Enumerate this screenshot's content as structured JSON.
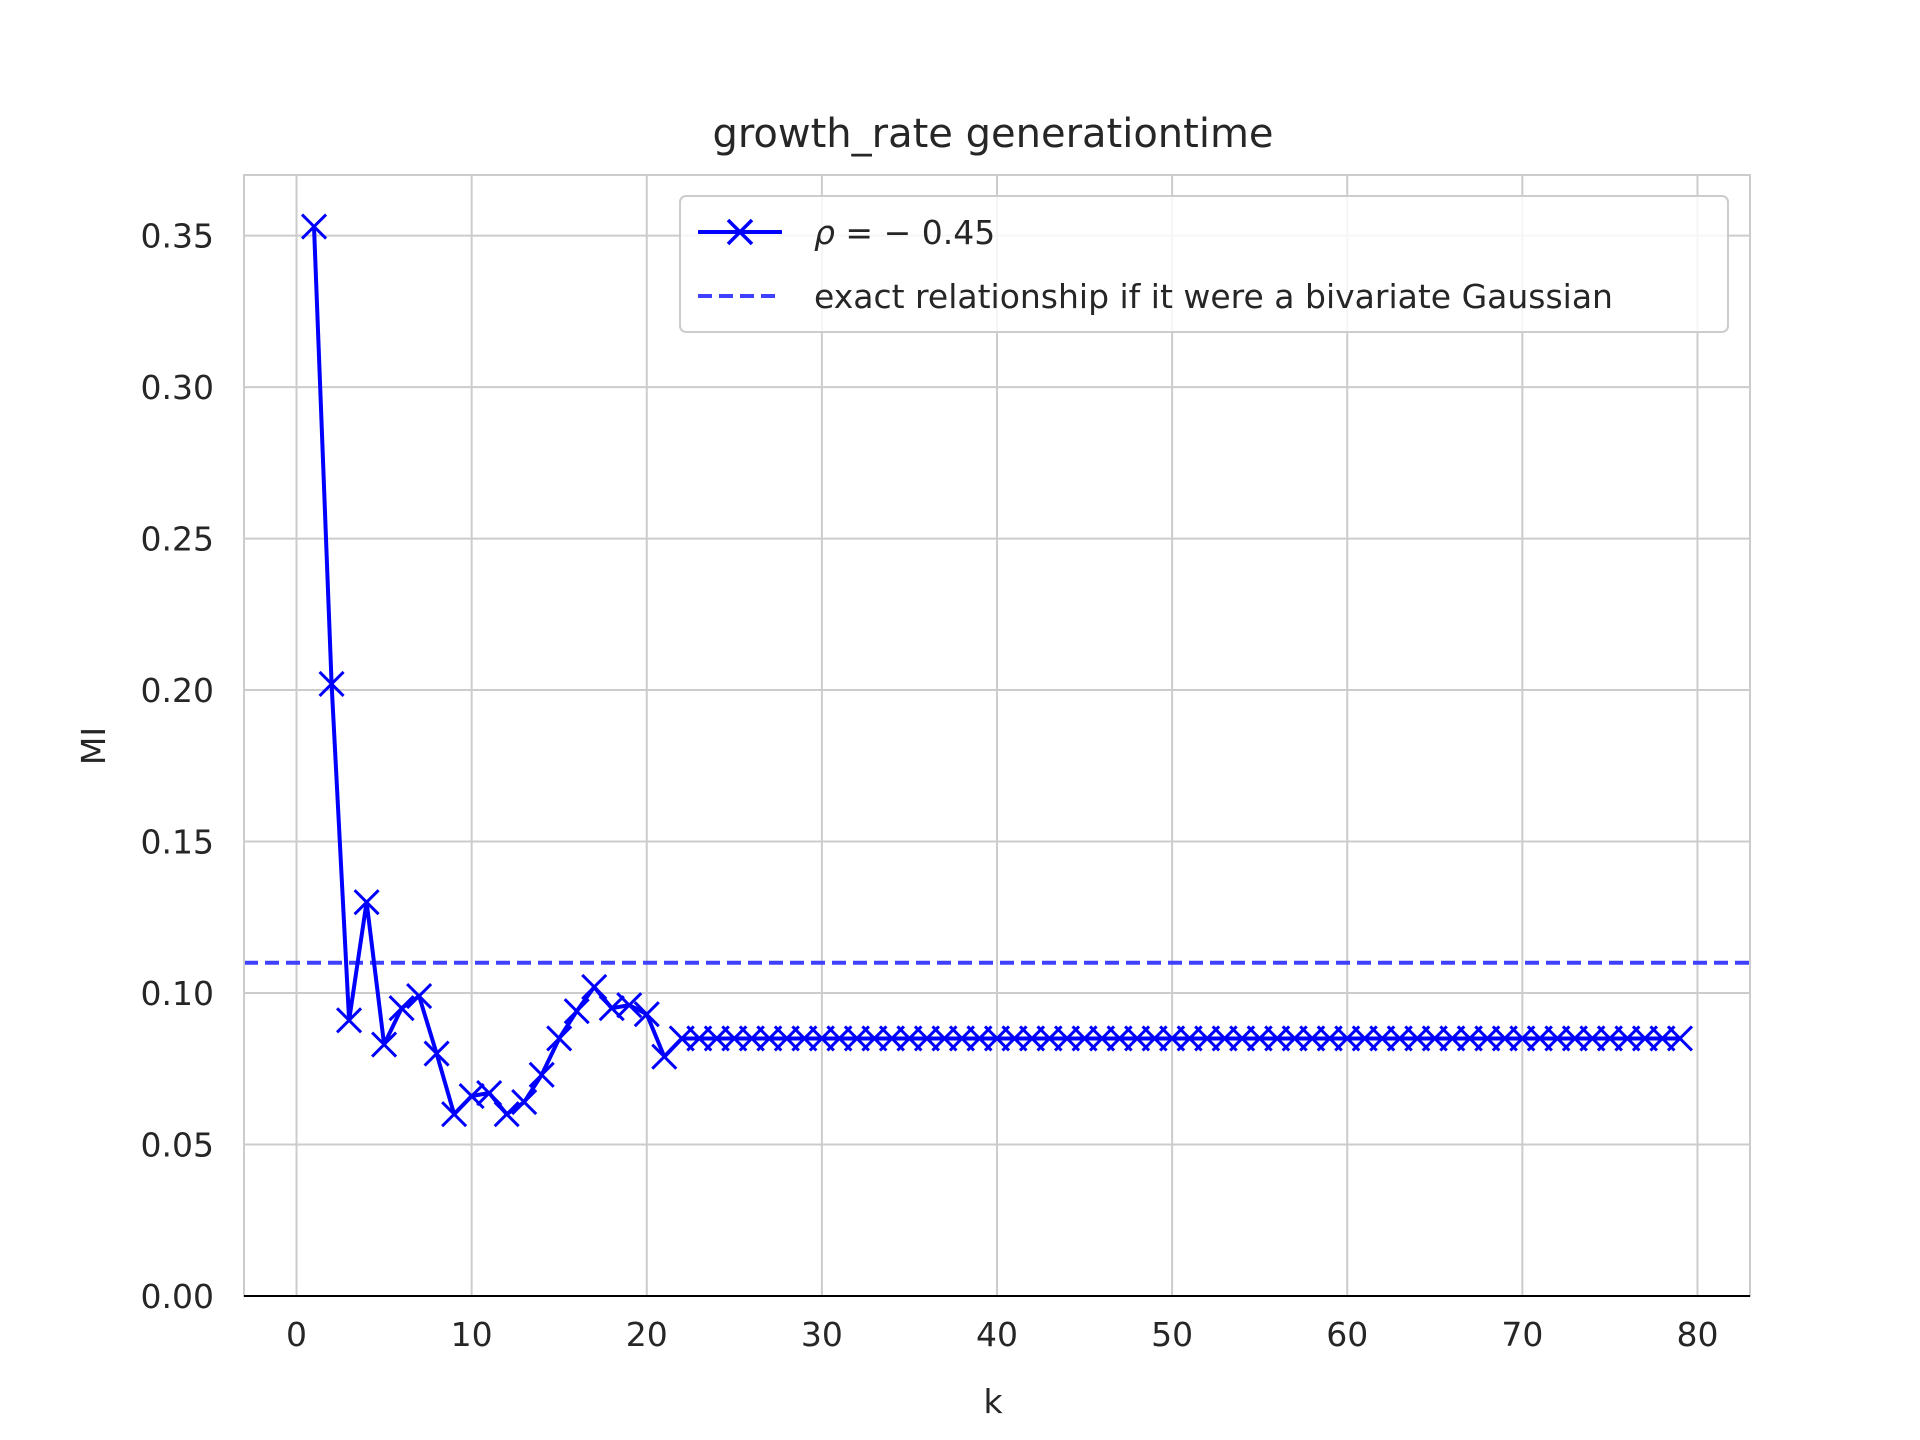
{
  "chart_data": {
    "type": "line",
    "title": "growth_rate generationtime",
    "xlabel": "k",
    "ylabel": "MI",
    "xlim": [
      -3,
      83
    ],
    "ylim": [
      0,
      0.37
    ],
    "xticks": [
      0,
      10,
      20,
      30,
      40,
      50,
      60,
      70,
      80
    ],
    "yticks": [
      0.0,
      0.05,
      0.1,
      0.15,
      0.2,
      0.25,
      0.3,
      0.35
    ],
    "grid": true,
    "legend_position": "top-right",
    "colors": {
      "series": "#0000ff",
      "reference": "#4040ff",
      "grid": "#cccccc",
      "text": "#262626"
    },
    "series": [
      {
        "name": "ρ = − 0.45",
        "name_prefix": "ρ = ",
        "name_value": "− 0.45",
        "marker": "x",
        "x": [
          1,
          2,
          3,
          4,
          5,
          6,
          7,
          8,
          9,
          10,
          11,
          12,
          13,
          14,
          15,
          16,
          17,
          18,
          19,
          20,
          21,
          22,
          23,
          24,
          25,
          26,
          27,
          28,
          29,
          30,
          31,
          32,
          33,
          34,
          35,
          36,
          37,
          38,
          39,
          40,
          41,
          42,
          43,
          44,
          45,
          46,
          47,
          48,
          49,
          50,
          51,
          52,
          53,
          54,
          55,
          56,
          57,
          58,
          59,
          60,
          61,
          62,
          63,
          64,
          65,
          66,
          67,
          68,
          69,
          70,
          71,
          72,
          73,
          74,
          75,
          76,
          77,
          78,
          79
        ],
        "y": [
          0.353,
          0.202,
          0.091,
          0.13,
          0.083,
          0.095,
          0.099,
          0.08,
          0.06,
          0.066,
          0.067,
          0.06,
          0.064,
          0.073,
          0.085,
          0.094,
          0.102,
          0.095,
          0.096,
          0.093,
          0.079,
          0.085,
          0.085,
          0.085,
          0.085,
          0.085,
          0.085,
          0.085,
          0.085,
          0.085,
          0.085,
          0.085,
          0.085,
          0.085,
          0.085,
          0.085,
          0.085,
          0.085,
          0.085,
          0.085,
          0.085,
          0.085,
          0.085,
          0.085,
          0.085,
          0.085,
          0.085,
          0.085,
          0.085,
          0.085,
          0.085,
          0.085,
          0.085,
          0.085,
          0.085,
          0.085,
          0.085,
          0.085,
          0.085,
          0.085,
          0.085,
          0.085,
          0.085,
          0.085,
          0.085,
          0.085,
          0.085,
          0.085,
          0.085,
          0.085,
          0.085,
          0.085,
          0.085,
          0.085,
          0.085,
          0.085,
          0.085,
          0.085,
          0.085
        ]
      },
      {
        "name": "exact relationship if it were a bivariate Gaussian",
        "style": "dashed",
        "y_constant": 0.11
      }
    ]
  }
}
